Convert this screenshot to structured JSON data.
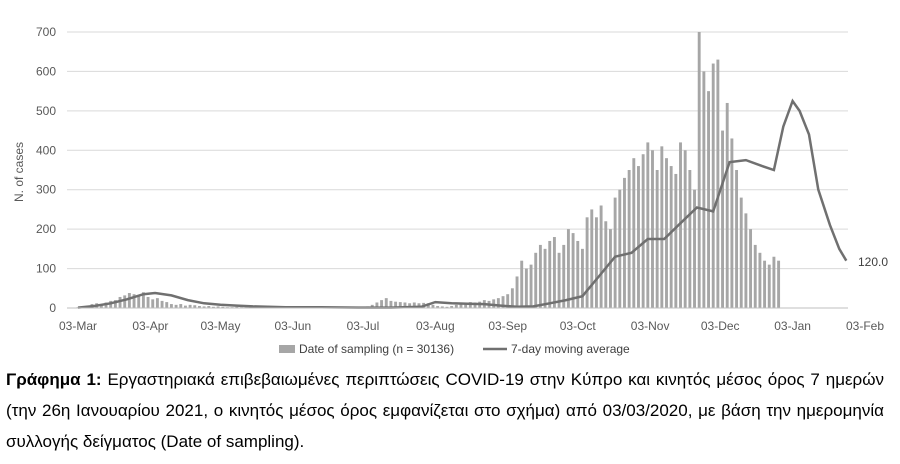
{
  "chart_data": {
    "type": "bar+line",
    "title": "",
    "xlabel": "",
    "ylabel": "N. of cases",
    "ylim": [
      0,
      700
    ],
    "yticks": [
      "0",
      "100",
      "200",
      "300",
      "400",
      "500",
      "600",
      "700"
    ],
    "xlim": [
      "2020-03-03",
      "2021-02-03"
    ],
    "xticks": [
      "03-Mar",
      "03-Apr",
      "03-May",
      "03-Jun",
      "03-Jul",
      "03-Aug",
      "03-Sep",
      "03-Oct",
      "03-Nov",
      "03-Dec",
      "03-Jan",
      "03-Feb"
    ],
    "grid": "horizontal",
    "legend_position": "bottom",
    "end_label": "120.0",
    "series": [
      {
        "name": "Date of sampling (n = 30136)",
        "kind": "bar",
        "color": "#a6a6a6",
        "sample_interval_days": 2,
        "first_date": "2020-03-03",
        "values": [
          2,
          3,
          6,
          10,
          12,
          8,
          14,
          18,
          20,
          28,
          32,
          38,
          35,
          30,
          40,
          28,
          22,
          25,
          18,
          15,
          10,
          8,
          10,
          6,
          8,
          7,
          5,
          4,
          5,
          3,
          4,
          3,
          2,
          2,
          3,
          2,
          2,
          3,
          2,
          2,
          2,
          2,
          3,
          2,
          2,
          3,
          2,
          2,
          2,
          2,
          2,
          2,
          2,
          2,
          2,
          2,
          2,
          2,
          2,
          2,
          2,
          3,
          4,
          8,
          14,
          20,
          25,
          18,
          16,
          15,
          14,
          12,
          14,
          12,
          13,
          12,
          8,
          5,
          4,
          3,
          5,
          8,
          10,
          12,
          15,
          14,
          16,
          20,
          18,
          22,
          25,
          30,
          35,
          50,
          80,
          120,
          100,
          110,
          140,
          160,
          150,
          170,
          180,
          140,
          160,
          200,
          190,
          170,
          150,
          230,
          250,
          230,
          260,
          220,
          200,
          280,
          300,
          330,
          350,
          380,
          360,
          390,
          420,
          400,
          350,
          410,
          380,
          360,
          340,
          420,
          400,
          350,
          300,
          700,
          600,
          550,
          620,
          630,
          450,
          520,
          430,
          350,
          280,
          240,
          200,
          160,
          140,
          120,
          110,
          130,
          120
        ],
        "note": "daily values estimated; chart shows one bar per day"
      },
      {
        "name": "7-day moving average",
        "kind": "line",
        "color": "#707070",
        "points": [
          [
            "2020-03-03",
            1
          ],
          [
            "2020-03-10",
            5
          ],
          [
            "2020-03-17",
            12
          ],
          [
            "2020-03-24",
            22
          ],
          [
            "2020-03-31",
            35
          ],
          [
            "2020-04-05",
            38
          ],
          [
            "2020-04-12",
            32
          ],
          [
            "2020-04-19",
            20
          ],
          [
            "2020-04-26",
            12
          ],
          [
            "2020-05-03",
            8
          ],
          [
            "2020-05-10",
            6
          ],
          [
            "2020-05-17",
            4
          ],
          [
            "2020-05-31",
            2
          ],
          [
            "2020-06-15",
            2
          ],
          [
            "2020-07-01",
            1
          ],
          [
            "2020-07-15",
            1
          ],
          [
            "2020-07-28",
            3
          ],
          [
            "2020-08-03",
            15
          ],
          [
            "2020-08-10",
            12
          ],
          [
            "2020-08-17",
            11
          ],
          [
            "2020-08-24",
            10
          ],
          [
            "2020-08-31",
            6
          ],
          [
            "2020-09-07",
            3
          ],
          [
            "2020-09-14",
            4
          ],
          [
            "2020-09-21",
            12
          ],
          [
            "2020-09-28",
            20
          ],
          [
            "2020-10-05",
            30
          ],
          [
            "2020-10-12",
            80
          ],
          [
            "2020-10-19",
            130
          ],
          [
            "2020-10-26",
            140
          ],
          [
            "2020-11-02",
            175
          ],
          [
            "2020-11-09",
            175
          ],
          [
            "2020-11-16",
            215
          ],
          [
            "2020-11-23",
            255
          ],
          [
            "2020-11-30",
            245
          ],
          [
            "2020-12-07",
            370
          ],
          [
            "2020-12-14",
            375
          ],
          [
            "2020-12-21",
            360
          ],
          [
            "2020-12-26",
            350
          ],
          [
            "2020-12-30",
            460
          ],
          [
            "2021-01-03",
            525
          ],
          [
            "2021-01-06",
            500
          ],
          [
            "2021-01-10",
            440
          ],
          [
            "2021-01-14",
            300
          ],
          [
            "2021-01-19",
            210
          ],
          [
            "2021-01-23",
            150
          ],
          [
            "2021-01-26",
            120
          ]
        ]
      }
    ]
  },
  "caption": {
    "label": "Γράφημα 1:",
    "text": " Εργαστηριακά επιβεβαιωμένες περιπτώσεις COVID-19 στην Κύπρο και κινητός μέσος όρος 7 ημερών (την 26η Ιανουαρίου 2021, ο κινητός μέσος όρος εμφανίζεται στο σχήμα) από 03/03/2020, με βάση την ημερομηνία συλλογής δείγματος (Date of sampling)."
  }
}
